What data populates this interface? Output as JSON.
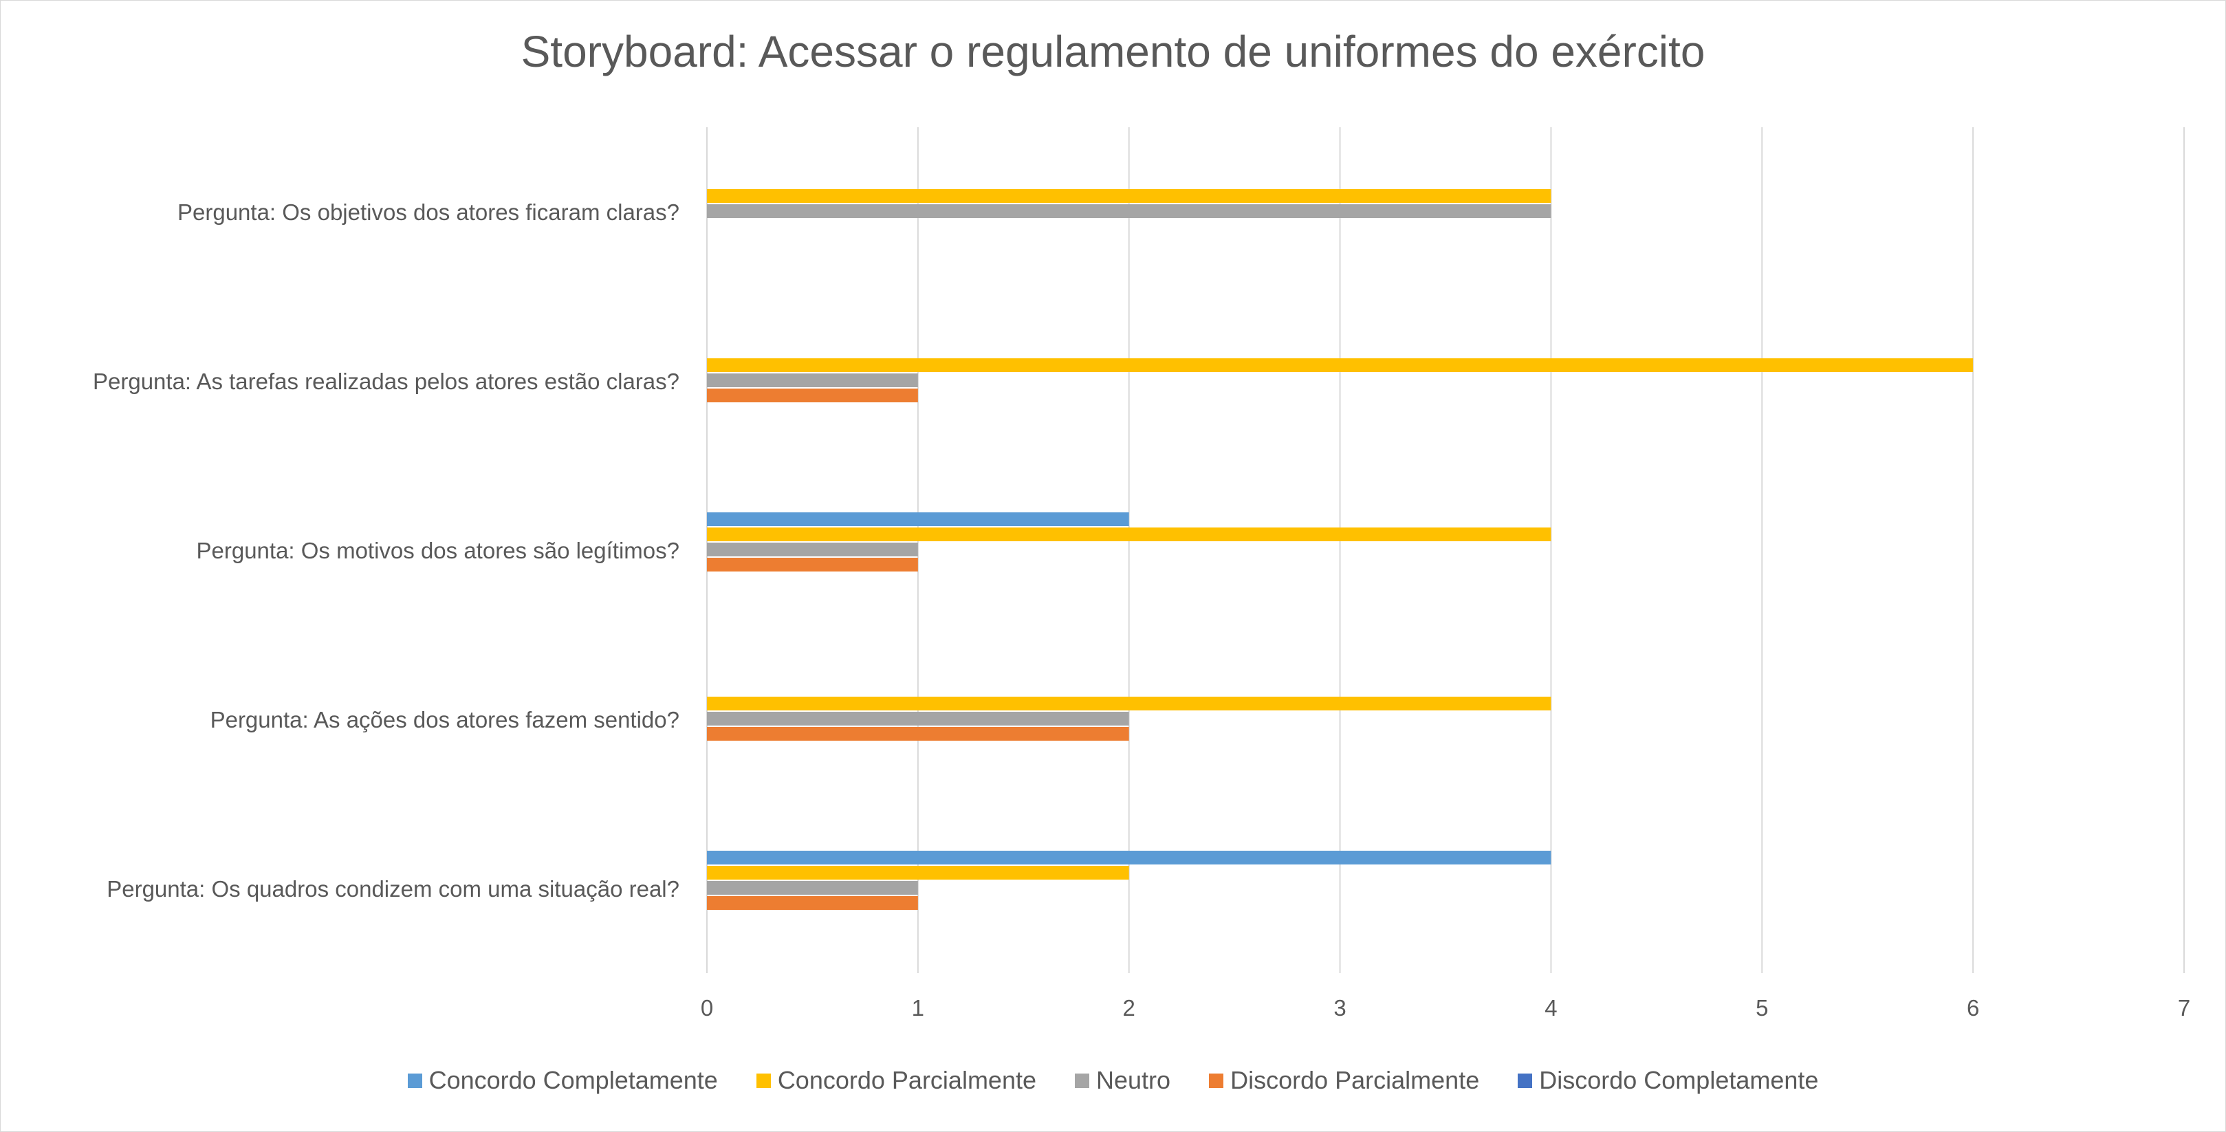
{
  "chart_data": {
    "type": "bar",
    "orientation": "horizontal",
    "title": "Storyboard: Acessar o regulamento de uniformes do exército",
    "categories": [
      "Pergunta: Os objetivos dos atores ficaram claras?",
      "Pergunta: As tarefas realizadas pelos atores estão claras?",
      "Pergunta: Os motivos dos atores são legítimos?",
      "Pergunta: As ações dos atores fazem sentido?",
      "Pergunta: Os quadros condizem com uma situação real?"
    ],
    "series": [
      {
        "name": "Concordo Completamente",
        "color": "#5b9bd5",
        "values": [
          0,
          0,
          2,
          0,
          4
        ]
      },
      {
        "name": "Concordo Parcialmente",
        "color": "#ffc000",
        "values": [
          4,
          6,
          4,
          4,
          2
        ]
      },
      {
        "name": "Neutro",
        "color": "#a5a5a5",
        "values": [
          4,
          1,
          1,
          2,
          1
        ]
      },
      {
        "name": "Discordo Parcialmente",
        "color": "#ed7d31",
        "values": [
          0,
          1,
          1,
          2,
          1
        ]
      },
      {
        "name": "Discordo Completamente",
        "color": "#4472c4",
        "values": [
          0,
          0,
          0,
          0,
          0
        ]
      }
    ],
    "xlim": [
      0,
      7
    ],
    "xticks": [
      "0",
      "1",
      "2",
      "3",
      "4",
      "5",
      "6",
      "7"
    ],
    "grid": "vertical",
    "legend_position": "bottom"
  }
}
